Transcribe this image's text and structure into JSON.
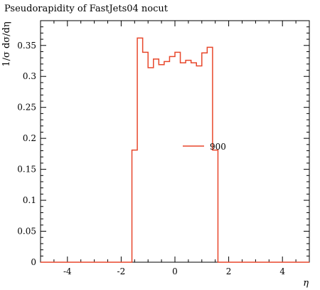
{
  "chart_data": {
    "type": "line",
    "title": "Pseudorapidity of FastJets04 nocut",
    "xlabel": "η",
    "ylabel": "1/σ dσ/dη",
    "xlim": [
      -5,
      5
    ],
    "ylim": [
      0,
      0.39
    ],
    "x_ticks": [
      {
        "value": -4,
        "label": "-4"
      },
      {
        "value": -2,
        "label": "-2"
      },
      {
        "value": 0,
        "label": "0"
      },
      {
        "value": 2,
        "label": "2"
      },
      {
        "value": 4,
        "label": "4"
      }
    ],
    "y_ticks": [
      {
        "value": 0,
        "label": "0"
      },
      {
        "value": 0.05,
        "label": "0.05"
      },
      {
        "value": 0.1,
        "label": "0.1"
      },
      {
        "value": 0.15,
        "label": "0.15"
      },
      {
        "value": 0.2,
        "label": "0.2"
      },
      {
        "value": 0.25,
        "label": "0.25"
      },
      {
        "value": 0.3,
        "label": "0.3"
      },
      {
        "value": 0.35,
        "label": "0.35"
      }
    ],
    "legend_position": "center-right",
    "series": [
      {
        "name": "900",
        "color": "#e8472b",
        "style": "histogram",
        "bin_edges": [
          -1.6,
          -1.4,
          -1.2,
          -1.0,
          -0.8,
          -0.6,
          -0.4,
          -0.2,
          0.0,
          0.2,
          0.4,
          0.6,
          0.8,
          1.0,
          1.2,
          1.4,
          1.6
        ],
        "values": [
          0.181,
          0.362,
          0.339,
          0.314,
          0.328,
          0.319,
          0.324,
          0.332,
          0.339,
          0.322,
          0.326,
          0.322,
          0.317,
          0.338,
          0.347,
          0.181
        ]
      }
    ]
  }
}
